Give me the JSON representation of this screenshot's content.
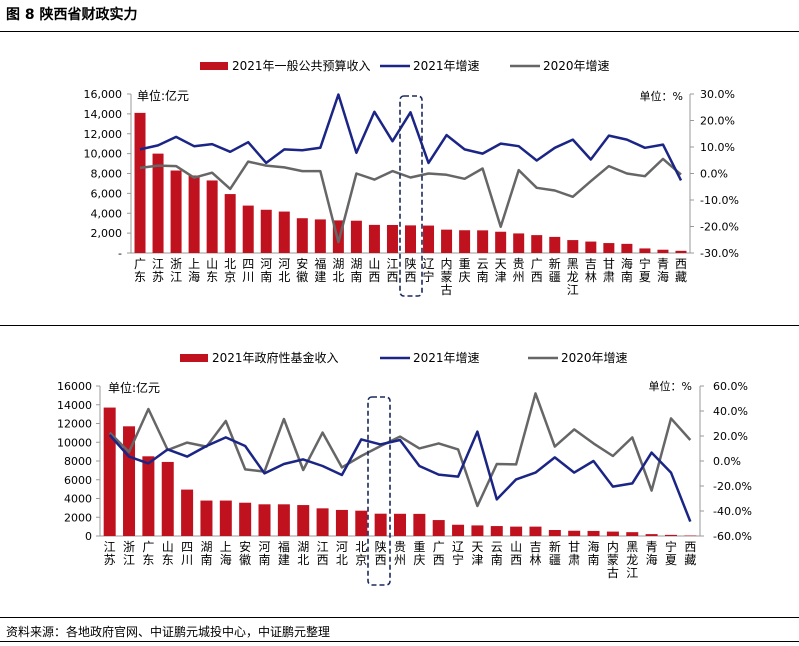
{
  "title": "图 8    陕西省财政实力",
  "source": "资料来源：各地政府官网、中证鹏元城投中心，中证鹏元整理",
  "colors": {
    "bar": "#C0111F",
    "line2021": "#1B2585",
    "line2020": "#666666",
    "highlight": "#1B2A5E"
  },
  "chart_data": [
    {
      "type": "bar+line",
      "unit_left": "单位:亿元",
      "unit_right": "单位：%",
      "legend": [
        "2021年一般公共预算收入",
        "2021年增速",
        "2020年增速"
      ],
      "highlight": "陕西",
      "categories": [
        "广东",
        "江苏",
        "浙江",
        "上海",
        "山东",
        "北京",
        "四川",
        "河南",
        "河北",
        "安徽",
        "福建",
        "湖北",
        "湖南",
        "山西",
        "江西",
        "陕西",
        "辽宁",
        "内蒙古",
        "重庆",
        "云南",
        "天津",
        "贵州",
        "广西",
        "新疆",
        "黑龙江",
        "吉林",
        "甘肃",
        "海南",
        "宁夏",
        "青海",
        "西藏"
      ],
      "bars": [
        14100,
        10000,
        8300,
        7800,
        7300,
        5930,
        4770,
        4350,
        4170,
        3500,
        3380,
        3280,
        3250,
        2830,
        2820,
        2780,
        2760,
        2350,
        2290,
        2280,
        2140,
        1970,
        1800,
        1620,
        1300,
        1150,
        1000,
        920,
        460,
        330,
        220
      ],
      "growth_2021": [
        9.1,
        10.6,
        13.8,
        10.3,
        11.1,
        8.2,
        11.8,
        4.0,
        9.1,
        8.8,
        9.7,
        29.8,
        7.8,
        23.3,
        12.2,
        23.1,
        4.0,
        14.5,
        9.1,
        7.5,
        11.3,
        10.3,
        4.9,
        9.7,
        12.8,
        5.3,
        14.3,
        12.8,
        9.7,
        10.9,
        -2.6
      ],
      "growth_2020": [
        2.1,
        3.0,
        2.8,
        -1.6,
        0.3,
        -5.8,
        4.5,
        3.0,
        2.3,
        0.9,
        0.9,
        -25.9,
        0.0,
        -2.3,
        0.9,
        -1.5,
        0.0,
        -0.5,
        -2.0,
        1.9,
        -20.1,
        1.3,
        -5.4,
        -6.4,
        -8.8,
        -2.9,
        2.8,
        0.0,
        -1.0,
        5.5,
        -0.4
      ],
      "ylim_left": [
        0,
        16000
      ],
      "ylim_right": [
        -30,
        30
      ],
      "left_ticks": [
        "-",
        "2,000",
        "4,000",
        "6,000",
        "8,000",
        "10,000",
        "12,000",
        "14,000",
        "16,000"
      ],
      "right_ticks": [
        "-30.0%",
        "-20.0%",
        "-10.0%",
        "0.0%",
        "10.0%",
        "20.0%",
        "30.0%"
      ]
    },
    {
      "type": "bar+line",
      "unit_left": "单位:亿元",
      "unit_right": "单位：%",
      "legend": [
        "2021年政府性基金收入",
        "2021年增速",
        "2020年增速"
      ],
      "highlight": "陕西",
      "categories": [
        "江苏",
        "浙江",
        "广东",
        "山东",
        "四川",
        "湖南",
        "上海",
        "安徽",
        "河南",
        "福建",
        "湖北",
        "江西",
        "河北",
        "北京",
        "陕西",
        "贵州",
        "重庆",
        "广西",
        "辽宁",
        "天津",
        "云南",
        "山西",
        "吉林",
        "新疆",
        "甘肃",
        "海南",
        "内蒙古",
        "黑龙江",
        "青海",
        "宁夏",
        "西藏"
      ],
      "bars": [
        13700,
        11700,
        8500,
        7900,
        4950,
        3780,
        3780,
        3550,
        3380,
        3380,
        3300,
        2950,
        2780,
        2700,
        2380,
        2370,
        2360,
        1700,
        1200,
        1130,
        1060,
        1000,
        1000,
        640,
        560,
        540,
        470,
        410,
        200,
        120,
        50
      ],
      "growth_2021": [
        20.8,
        3.5,
        -1.9,
        9.3,
        3.5,
        12.0,
        18.9,
        12.0,
        -9.9,
        -2.4,
        1.3,
        -4.0,
        -11.2,
        17.3,
        13.3,
        16.8,
        -4.0,
        -10.9,
        -12.5,
        23.5,
        -30.7,
        -14.7,
        -9.3,
        2.9,
        -9.3,
        0.0,
        -20.5,
        -17.9,
        6.7,
        -9.3,
        -48.5
      ],
      "growth_2020": [
        22.7,
        7.2,
        41.6,
        8.8,
        14.7,
        11.5,
        32.0,
        -6.7,
        -8.5,
        33.6,
        -7.2,
        22.7,
        -5.1,
        4.0,
        12.0,
        19.5,
        10.1,
        14.1,
        9.3,
        -36.0,
        -2.4,
        -2.7,
        54.1,
        11.5,
        25.3,
        14.1,
        4.0,
        18.9,
        -23.7,
        34.1,
        16.8
      ],
      "ylim_left": [
        0,
        16000
      ],
      "ylim_right": [
        -60,
        60
      ],
      "left_ticks": [
        "0",
        "2000",
        "4000",
        "6000",
        "8000",
        "10000",
        "12000",
        "14000",
        "16000"
      ],
      "right_ticks": [
        "-60.0%",
        "-40.0%",
        "-20.0%",
        "0.0%",
        "20.0%",
        "40.0%",
        "60.0%"
      ]
    }
  ]
}
